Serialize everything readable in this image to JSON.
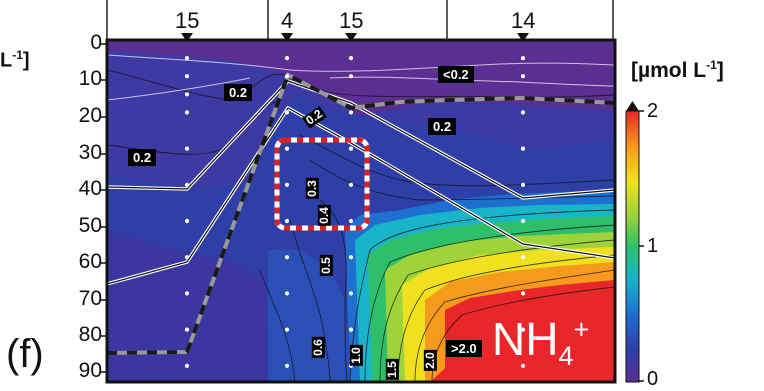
{
  "chart_data": {
    "type": "heatmap",
    "title": "",
    "panel_label": "(f)",
    "species_label": {
      "main": "NH",
      "sub": "4",
      "sup": "+"
    },
    "ylabel_fragment": "L",
    "ylabel_fragment_sup": "-1",
    "ylim": [
      0,
      95
    ],
    "y_ticks": [
      "0",
      "10",
      "20",
      "30",
      "40",
      "50",
      "60",
      "70",
      "80",
      "90"
    ],
    "y_tick_values": [
      0,
      10,
      20,
      30,
      40,
      50,
      60,
      70,
      80,
      90
    ],
    "top_station_labels": [
      "15",
      "4",
      "15",
      "14"
    ],
    "colorbar": {
      "unit_main": "[µmol L",
      "unit_sup": "-1",
      "unit_close": "]",
      "ticks": [
        "2",
        "1",
        "0"
      ],
      "range": [
        0,
        2
      ],
      "colors": [
        "#5b2e91",
        "#2f3fa8",
        "#1f6fd0",
        "#18b4c8",
        "#2fbf6a",
        "#9ed43a",
        "#f0e11e",
        "#f59a1c",
        "#e9262a"
      ]
    },
    "contour_labels": [
      "0.2",
      "<0.2",
      "0.2",
      "0.2",
      "0.2",
      "0.3",
      "0.4",
      "0.5",
      "0.6",
      "1.0",
      "1.5",
      "2.0",
      ">2.0"
    ],
    "stations": [
      {
        "label": "15",
        "samples_depth": [
          5,
          10,
          15,
          20,
          30,
          40,
          50,
          60,
          70,
          80,
          90
        ]
      },
      {
        "label": "4",
        "samples_depth": [
          5,
          10,
          20,
          30,
          40,
          50,
          60,
          70,
          80,
          90
        ]
      },
      {
        "label": "15",
        "samples_depth": [
          5,
          10,
          20,
          30,
          40,
          50,
          60,
          70,
          80,
          90
        ]
      },
      {
        "label": "14",
        "samples_depth": [
          5,
          10,
          20,
          30,
          40,
          50,
          60,
          70,
          80,
          90
        ]
      }
    ],
    "highlight_box": {
      "depth_range": [
        27,
        52
      ]
    }
  }
}
